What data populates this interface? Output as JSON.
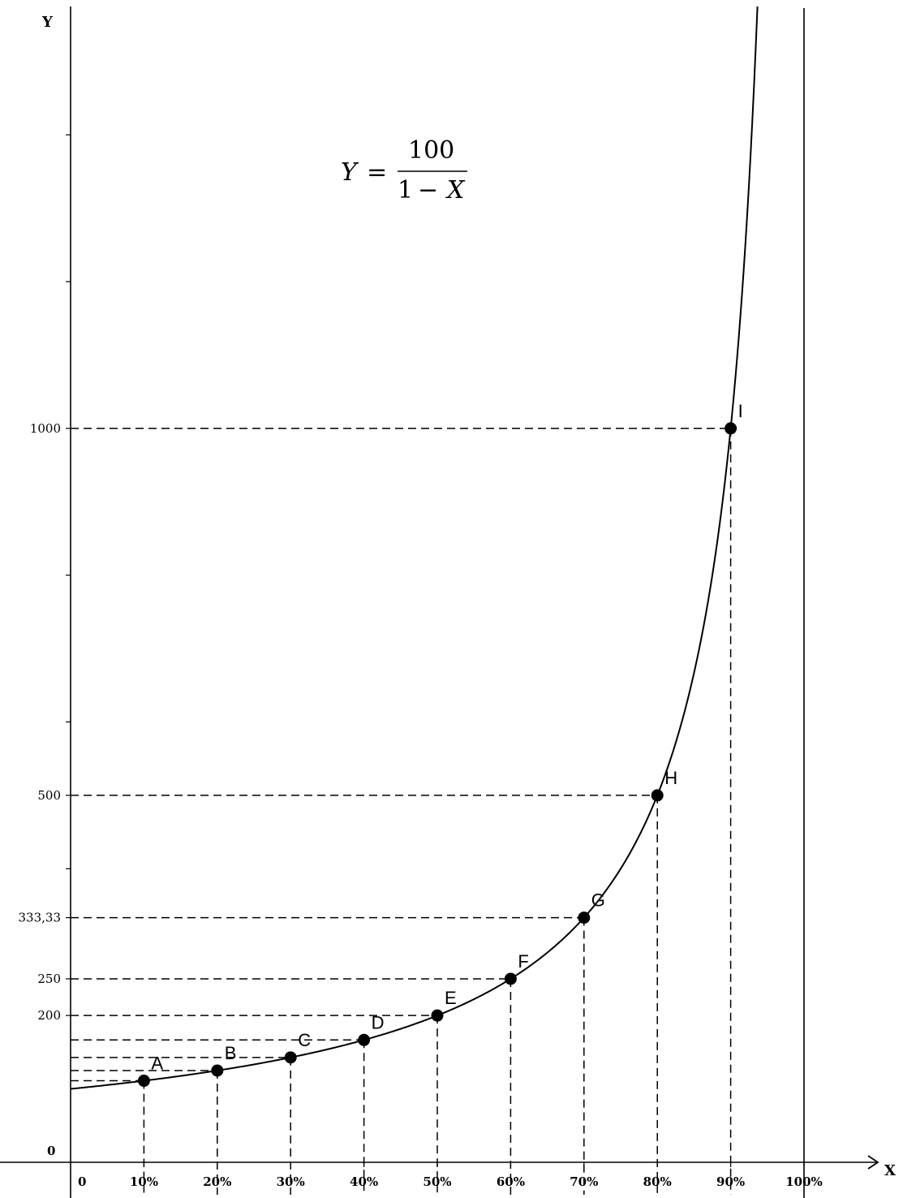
{
  "chart_data": {
    "type": "line",
    "title": "",
    "xlabel": "X",
    "ylabel": "Y",
    "formula": {
      "lhs": "Y",
      "equals": "=",
      "numerator": "100",
      "denominator_const": "1",
      "minus": "−",
      "denominator_var": "X"
    },
    "x_origin_label": "0",
    "y_origin_label": "0",
    "x_ticks": [
      {
        "x": 0.1,
        "label": "10%"
      },
      {
        "x": 0.2,
        "label": "20%"
      },
      {
        "x": 0.3,
        "label": "30%"
      },
      {
        "x": 0.4,
        "label": "40%"
      },
      {
        "x": 0.5,
        "label": "50%"
      },
      {
        "x": 0.6,
        "label": "60%"
      },
      {
        "x": 0.7,
        "label": "70%"
      },
      {
        "x": 0.8,
        "label": "80%"
      },
      {
        "x": 0.9,
        "label": "90%"
      },
      {
        "x": 1.0,
        "label": "100%"
      }
    ],
    "y_tick_labels": [
      {
        "y": 200,
        "label": "200"
      },
      {
        "y": 250,
        "label": "250"
      },
      {
        "y": 333.33,
        "label": "333,33"
      },
      {
        "y": 500,
        "label": "500"
      },
      {
        "y": 1000,
        "label": "1000"
      }
    ],
    "y_minor_ticks": [
      400,
      600,
      800,
      1200,
      1400,
      1600
    ],
    "points": [
      {
        "name": "A",
        "x": 0.1,
        "y": 111.11
      },
      {
        "name": "B",
        "x": 0.2,
        "y": 125
      },
      {
        "name": "C",
        "x": 0.3,
        "y": 142.86
      },
      {
        "name": "D",
        "x": 0.4,
        "y": 166.67
      },
      {
        "name": "E",
        "x": 0.5,
        "y": 200
      },
      {
        "name": "F",
        "x": 0.6,
        "y": 250
      },
      {
        "name": "G",
        "x": 0.7,
        "y": 333.33
      },
      {
        "name": "H",
        "x": 0.8,
        "y": 500
      },
      {
        "name": "I",
        "x": 0.9,
        "y": 1000
      }
    ],
    "asymptote_x": 1.0,
    "xlim": [
      0,
      1.1
    ],
    "ylim": [
      0,
      1600
    ],
    "grid": false,
    "colors": {
      "line": "#000000",
      "points": "#000000",
      "background": "#ffffff"
    }
  }
}
